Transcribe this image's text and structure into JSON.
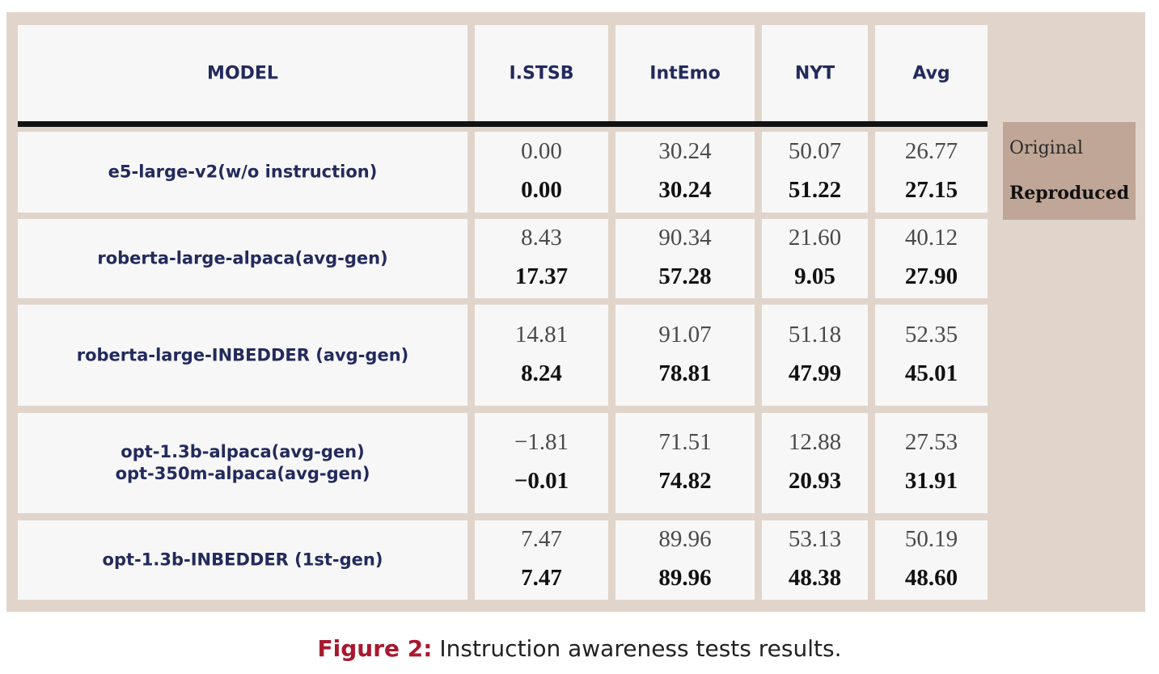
{
  "chart_data": {
    "type": "table",
    "columns": [
      "MODEL",
      "I.STSB",
      "IntEmo",
      "NYT",
      "Avg"
    ],
    "rows": [
      {
        "model": [
          "e5-large-v2(w/o instruction)"
        ],
        "original": [
          "0.00",
          "30.24",
          "50.07",
          "26.77"
        ],
        "reproduced": [
          "0.00",
          "30.24",
          "51.22",
          "27.15"
        ]
      },
      {
        "model": [
          "roberta-large-alpaca(avg-gen)"
        ],
        "original": [
          "8.43",
          "90.34",
          "21.60",
          "40.12"
        ],
        "reproduced": [
          "17.37",
          "57.28",
          "9.05",
          "27.90"
        ]
      },
      {
        "model": [
          "roberta-large-INBEDDER (avg-gen)"
        ],
        "original": [
          "14.81",
          "91.07",
          "51.18",
          "52.35"
        ],
        "reproduced": [
          "8.24",
          "78.81",
          "47.99",
          "45.01"
        ]
      },
      {
        "model": [
          "opt-1.3b-alpaca(avg-gen)",
          "opt-350m-alpaca(avg-gen)"
        ],
        "original": [
          "−1.81",
          "71.51",
          "12.88",
          "27.53"
        ],
        "reproduced": [
          "−0.01",
          "74.82",
          "20.93",
          "31.91"
        ]
      },
      {
        "model": [
          "opt-1.3b-INBEDDER (1st-gen)"
        ],
        "original": [
          "7.47",
          "89.96",
          "53.13",
          "50.19"
        ],
        "reproduced": [
          "7.47",
          "89.96",
          "48.38",
          "48.60"
        ]
      }
    ],
    "legend": {
      "original": "Original",
      "reproduced": "Reproduced"
    },
    "colors": {
      "frame": "#e1d5cb",
      "cell": "#f7f7f7",
      "header_text": "#232a5c",
      "legend_bg": "#c0a696",
      "caption_label": "#a8182e"
    }
  },
  "caption": {
    "label": "Figure 2:",
    "text": " Instruction awareness tests results."
  }
}
